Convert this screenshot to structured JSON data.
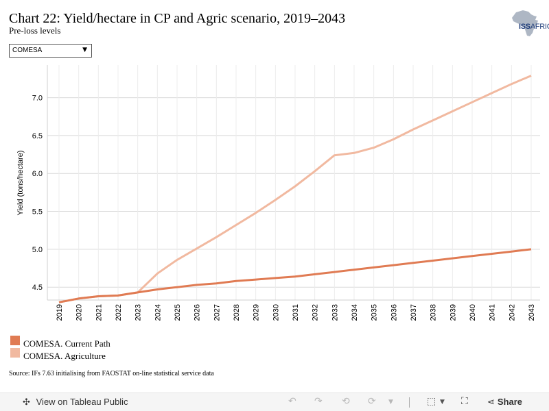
{
  "header": {
    "title": "Chart 22: Yield/hectare in CP and Agric scenario, 2019–2043",
    "subtitle": "Pre-loss levels",
    "logo_text_a": "ISS",
    "logo_text_b": "AFRICA"
  },
  "filter": {
    "selected": "COMESA",
    "arrow": "▼"
  },
  "chart_data": {
    "type": "line",
    "title": "Chart 22: Yield/hectare in CP and Agric scenario, 2019–2043",
    "subtitle": "Pre-loss levels",
    "xlabel": "",
    "ylabel": "Yield (tons/hectare)",
    "x": [
      "2019",
      "2020",
      "2021",
      "2022",
      "2023",
      "2024",
      "2025",
      "2026",
      "2027",
      "2028",
      "2029",
      "2030",
      "2031",
      "2032",
      "2033",
      "2034",
      "2035",
      "2036",
      "2037",
      "2038",
      "2039",
      "2040",
      "2041",
      "2042",
      "2043"
    ],
    "ylim": [
      4.33,
      7.43
    ],
    "yticks": [
      4.5,
      5.0,
      5.5,
      6.0,
      6.5,
      7.0
    ],
    "ytick_labels": [
      "4.5",
      "5.0",
      "5.5",
      "6.0",
      "6.5",
      "7.0"
    ],
    "grid": true,
    "legend_position": "bottom-left",
    "series": [
      {
        "name": "COMESA. Current Path",
        "color": "#e07b53",
        "values": [
          4.3,
          4.35,
          4.38,
          4.39,
          4.43,
          4.47,
          4.5,
          4.53,
          4.55,
          4.58,
          4.6,
          4.62,
          4.64,
          4.67,
          4.7,
          4.73,
          4.76,
          4.79,
          4.82,
          4.85,
          4.88,
          4.91,
          4.94,
          4.97,
          5.0
        ]
      },
      {
        "name": "COMESA. Agriculture",
        "color": "#f1b9a0",
        "values": [
          4.3,
          4.35,
          4.38,
          4.39,
          4.43,
          4.68,
          4.86,
          5.01,
          5.16,
          5.32,
          5.48,
          5.65,
          5.83,
          6.03,
          6.24,
          6.27,
          6.34,
          6.45,
          6.58,
          6.7,
          6.82,
          6.94,
          7.06,
          7.18,
          7.29
        ]
      }
    ]
  },
  "legend": {
    "items": [
      {
        "label": "COMESA. Current Path",
        "color": "#e07b53"
      },
      {
        "label": "COMESA. Agriculture",
        "color": "#f1b9a0"
      }
    ]
  },
  "source": "Source: IFs 7.63 initialising from FAOSTAT on-line statistical service data",
  "toolbar": {
    "view_label": "View on Tableau Public",
    "share_label": "Share",
    "icons": [
      "tableau-icon",
      "undo-icon",
      "redo-icon",
      "revert-icon",
      "refresh-icon",
      "pause-icon",
      "download-icon",
      "fullscreen-icon",
      "share-icon"
    ]
  }
}
